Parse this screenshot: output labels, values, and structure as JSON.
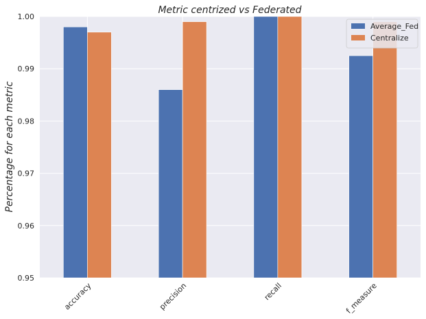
{
  "chart_data": {
    "type": "bar",
    "title": "Metric centrized vs Federated",
    "xlabel": "",
    "ylabel": "Percentage for each metric",
    "categories": [
      "accuracy",
      "precision",
      "recall",
      "f_measure"
    ],
    "series": [
      {
        "name": "Average_Fed",
        "values": [
          0.998,
          0.986,
          1.0,
          0.9925
        ],
        "color": "#4c72b0"
      },
      {
        "name": "Centralize",
        "values": [
          0.997,
          0.999,
          1.0,
          0.999
        ],
        "color": "#dd8452"
      }
    ],
    "ylim": [
      0.95,
      1.0
    ],
    "yticks": [
      "0.95",
      "0.96",
      "0.97",
      "0.98",
      "0.99",
      "1.00"
    ],
    "ytick_values": [
      0.95,
      0.96,
      0.97,
      0.98,
      0.99,
      1.0
    ],
    "grid": true,
    "legend_position": "top-right",
    "background_color": "#eaeaf2",
    "grid_color": "#ffffff"
  }
}
